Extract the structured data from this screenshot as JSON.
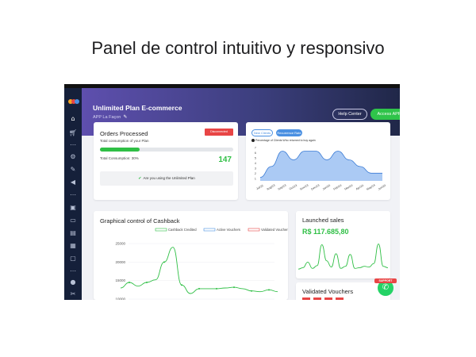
{
  "headline": "Panel de control intuitivo y responsivo",
  "colors": {
    "brand_green": "#2fbf45",
    "accent_blue": "#4a90e2",
    "alert_red": "#e84545",
    "sidebar": "#15203a"
  },
  "sidebar": {
    "icons": [
      "home-icon",
      "cart-icon",
      "more-icon",
      "gear-icon",
      "brush-icon",
      "megaphone-icon",
      "more-icon",
      "box-icon",
      "chat-icon",
      "window-icon",
      "grid-icon",
      "monitor-icon",
      "more-icon",
      "users-icon",
      "wrench-icon"
    ]
  },
  "banner": {
    "title": "Unlimited Plan E-commerce",
    "subtitle": "APP La Façon",
    "help_label": "Help Center",
    "access_label": "Access APP"
  },
  "orders": {
    "title": "Orders Processed",
    "badge": "Disconnected",
    "subtitle": "Total consumption of your Plan",
    "progress_percent": 30,
    "consumption_label": "Total Consumption: 30%",
    "count": "147",
    "info": "Are you using the Unlimited Plan"
  },
  "clients": {
    "tab_new": "New Clients",
    "tab_recurrence": "Recurrence Rate",
    "legend": "Percentage of Clients Who returned to buy again"
  },
  "cashback": {
    "title": "Graphical control of Cashback"
  },
  "sales": {
    "title": "Launched sales",
    "value": "R$ 117.685,80"
  },
  "vouchers": {
    "title": "Validated Vouchers"
  },
  "support": {
    "label": "SUPPORT"
  },
  "chart_data": [
    {
      "type": "area",
      "categories": [
        "Jul/23",
        "Aug/23",
        "Sep/23",
        "Oct/23",
        "Nov/23",
        "Dec/23",
        "Jan/24",
        "Feb/24",
        "Mar/24",
        "Apr/24",
        "May/24",
        "Jun/24"
      ],
      "values": [
        1.2,
        3.3,
        6.3,
        4.6,
        6.3,
        6.3,
        4.6,
        6.3,
        4.6,
        3.3,
        2.0,
        2.0
      ],
      "yticks": [
        1,
        2,
        3,
        4,
        5,
        6,
        7
      ],
      "ylim": [
        0.5,
        7.3
      ]
    },
    {
      "type": "line",
      "title": "Graphical control of Cashback",
      "legend": [
        "Cashback Credited",
        "Active Vouchers",
        "Validated Vouchers"
      ],
      "legend_colors": [
        "#2fbf45",
        "#4a90e2",
        "#e84545"
      ],
      "series": [
        {
          "name": "Cashback Credited",
          "values": [
            13000,
            14500,
            13500,
            14500,
            15200,
            20000,
            24000,
            13800,
            11500,
            12800,
            12800,
            12800,
            13000,
            13200,
            12800,
            12200,
            12000,
            12500,
            12000
          ]
        }
      ],
      "yticks": [
        25000,
        20000,
        15000,
        10000
      ],
      "ylim": [
        10000,
        25000
      ]
    },
    {
      "type": "line",
      "title": "Launched sales",
      "values": [
        2,
        2.2,
        3,
        2.1,
        2.5,
        5.5,
        3.2,
        2.3,
        4.2,
        2.1,
        2.4,
        4.1,
        2.1,
        2.2,
        2.4,
        2.3,
        2.8,
        5.6,
        2.4,
        2.2
      ],
      "ylim": [
        1,
        6
      ]
    }
  ]
}
